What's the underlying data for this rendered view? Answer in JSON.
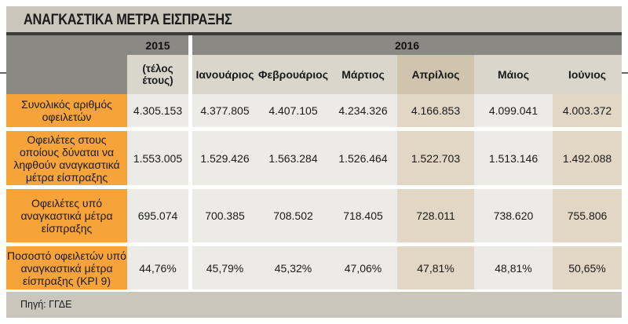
{
  "title": "ΑΝΑΓΚΑΣΤΙΚΑ ΜΕΤΡΑ ΕΙΣΠΡΑΞΗΣ",
  "header": {
    "year_2015": "2015",
    "year_2015_sub": "(τέλος έτους)",
    "year_2016": "2016",
    "months": [
      "Ιανουάριος",
      "Φεβρουάριος",
      "Μάρτιος",
      "Απρίλιος",
      "Μάιος",
      "Ιούνιος"
    ]
  },
  "rows": [
    {
      "label": "Συνολικός αριθμός οφειλετών",
      "v2015": "4.305.153",
      "values": [
        "4.377.805",
        "4.407.105",
        "4.234.326",
        "4.166.853",
        "4.099.041",
        "4.003.372"
      ]
    },
    {
      "label": "Οφειλέτες στους οποίους δύναται να ληφθούν αναγκαστικά μέτρα είσπραξης",
      "v2015": "1.553.005",
      "values": [
        "1.529.426",
        "1.563.284",
        "1.526.464",
        "1.522.703",
        "1.513.146",
        "1.492.088"
      ]
    },
    {
      "label": "Οφειλέτες υπό αναγκαστικά μέτρα είσπραξης",
      "v2015": "695.074",
      "values": [
        "700.385",
        "708.502",
        "718.405",
        "728.011",
        "738.620",
        "755.806"
      ]
    },
    {
      "label": "Ποσοστό οφειλετών υπό αναγκαστικά μέτρα είσπραξης (KPI 9)",
      "v2015": "44,76%",
      "values": [
        "45,79%",
        "45,32%",
        "47,06%",
        "47,81%",
        "48,81%",
        "50,65%"
      ]
    }
  ],
  "source": "Πηγή: ΓΓΔΕ",
  "colors": {
    "label_column": "#f6a33a",
    "header_dark": "#8a8983",
    "header_light": "#dbd6cc",
    "cell_light": "#ecebe8",
    "cell_beige": "#e2d7c4"
  }
}
